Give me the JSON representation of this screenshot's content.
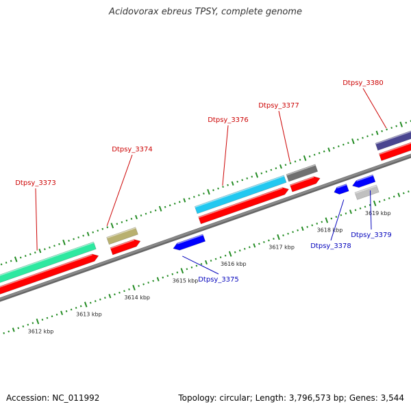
{
  "title": "Acidovorax ebreus TPSY, complete genome",
  "footer": {
    "accession": "Accession: NC_011992",
    "summary": "Topology: circular; Length: 3,796,573 bp; Genes: 3,544"
  },
  "chart_data": {
    "type": "genome-map",
    "units": "kbp",
    "visible_range": [
      3611.5,
      3619.6
    ],
    "scale_labels": [
      "3612 kbp",
      "3613 kbp",
      "3614 kbp",
      "3615 kbp",
      "3616 kbp",
      "3617 kbp",
      "3618 kbp",
      "3619 kbp"
    ],
    "scale_values": [
      3612,
      3613,
      3614,
      3615,
      3616,
      3617,
      3618,
      3619
    ],
    "colors": {
      "forward_label": "#cc0000",
      "reverse_label": "#0000bb",
      "cds": "#ff0000",
      "reverse_gene": "#0000ff",
      "backbone": "#888888",
      "tick": "#228b22"
    },
    "genes": [
      {
        "name": "Dtpsy_3373",
        "strand": "+",
        "start": 3611.0,
        "end": 3613.55,
        "color": "#2ee8a0",
        "label_side": "top"
      },
      {
        "name": "Dtpsy_3374",
        "strand": "+",
        "start": 3613.82,
        "end": 3614.42,
        "color": "#b8b070",
        "label_side": "top"
      },
      {
        "name": "Dtpsy_3375",
        "strand": "-",
        "start": 3614.98,
        "end": 3615.62,
        "color": "#0000ff",
        "label_side": "bottom"
      },
      {
        "name": "Dtpsy_3376",
        "strand": "+",
        "start": 3615.65,
        "end": 3617.5,
        "color": "#22c8f0",
        "label_side": "top"
      },
      {
        "name": "Dtpsy_3377",
        "strand": "+",
        "start": 3617.55,
        "end": 3618.15,
        "color": "#707070",
        "label_side": "top"
      },
      {
        "name": "Dtpsy_3378",
        "strand": "-",
        "start": 3618.32,
        "end": 3618.6,
        "color": "#0000ff",
        "label_side": "bottom"
      },
      {
        "name": "Dtpsy_3379",
        "strand": "-",
        "start": 3618.7,
        "end": 3619.15,
        "color": "#0000ff",
        "label_side": "bottom"
      },
      {
        "name": "Dtpsy_3380",
        "strand": "+",
        "start": 3619.4,
        "end": 3620.2,
        "color": "#4a4590",
        "label_side": "top"
      }
    ],
    "extra_features": [
      {
        "kind": "grey-block",
        "start": 3618.7,
        "end": 3619.15,
        "color": "#c0c0c0"
      }
    ]
  }
}
